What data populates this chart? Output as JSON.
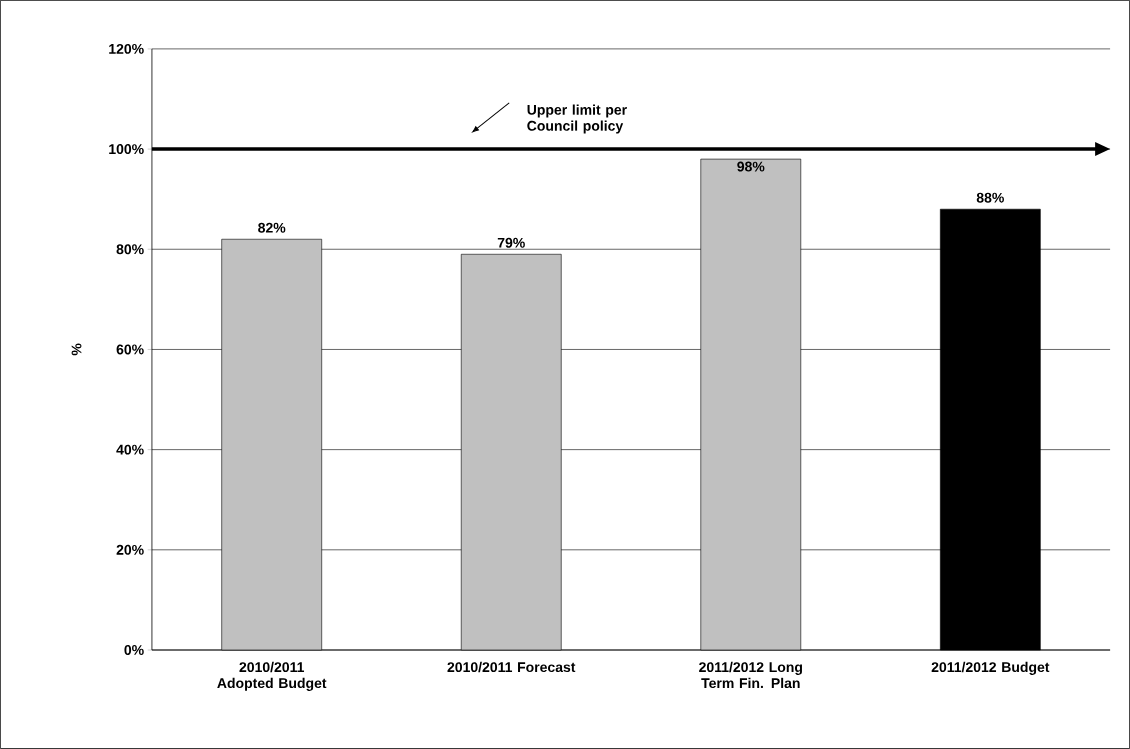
{
  "chart_data": {
    "type": "bar",
    "ylabel": "%",
    "categories": [
      "2010/2011 Adopted Budget",
      "2010/2011 Forecast",
      "2011/2012 Long Term Fin. Plan",
      "2011/2012 Budget"
    ],
    "values": [
      82,
      79,
      98,
      88
    ],
    "value_labels": [
      "82%",
      "79%",
      "98%",
      "88%"
    ],
    "colors": [
      "#c0c0c0",
      "#c0c0c0",
      "#c0c0c0",
      "#000000"
    ],
    "ylim": [
      0,
      120
    ],
    "yticks": [
      {
        "value": 0,
        "label": "0%"
      },
      {
        "value": 20,
        "label": "20%"
      },
      {
        "value": 40,
        "label": "40%"
      },
      {
        "value": 60,
        "label": "60%"
      },
      {
        "value": 80,
        "label": "80%"
      },
      {
        "value": 100,
        "label": "100%"
      },
      {
        "value": 120,
        "label": "120%"
      }
    ],
    "grid": "y",
    "ref_lines": [
      {
        "axis": "y",
        "value": 100,
        "label": "Upper limit per Council policy",
        "color": "#000000"
      }
    ]
  }
}
